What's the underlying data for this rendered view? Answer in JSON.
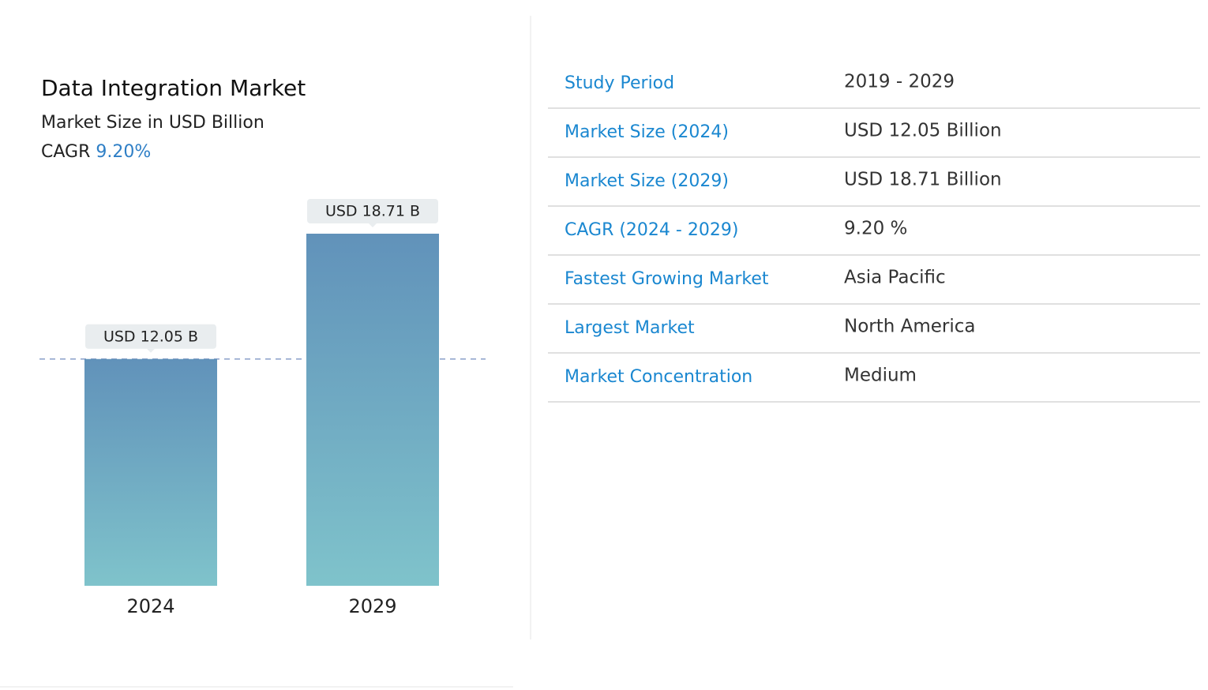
{
  "chart_data": {
    "type": "bar",
    "title": "Data Integration Market",
    "subtitle": "Market Size in USD Billion",
    "cagr_label": "CAGR",
    "cagr_value": "9.20%",
    "categories": [
      "2024",
      "2029"
    ],
    "values": [
      12.05,
      18.71
    ],
    "value_labels": [
      "USD 12.05 B",
      "USD 18.71 B"
    ],
    "gradient": [
      "#6192ba",
      "#7fc3cb"
    ],
    "reference_color": "#8a9fc8"
  },
  "table": {
    "rows": [
      [
        "Study Period",
        "2019 - 2029"
      ],
      [
        "Market Size (2024)",
        "USD 12.05 Billion"
      ],
      [
        "Market Size (2029)",
        "USD 18.71 Billion"
      ],
      [
        "CAGR (2024 - 2029)",
        "9.20 %"
      ],
      [
        "Fastest Growing Market",
        "Asia Pacific"
      ],
      [
        "Largest Market",
        "North America"
      ],
      [
        "Market Concentration",
        "Medium"
      ]
    ]
  }
}
